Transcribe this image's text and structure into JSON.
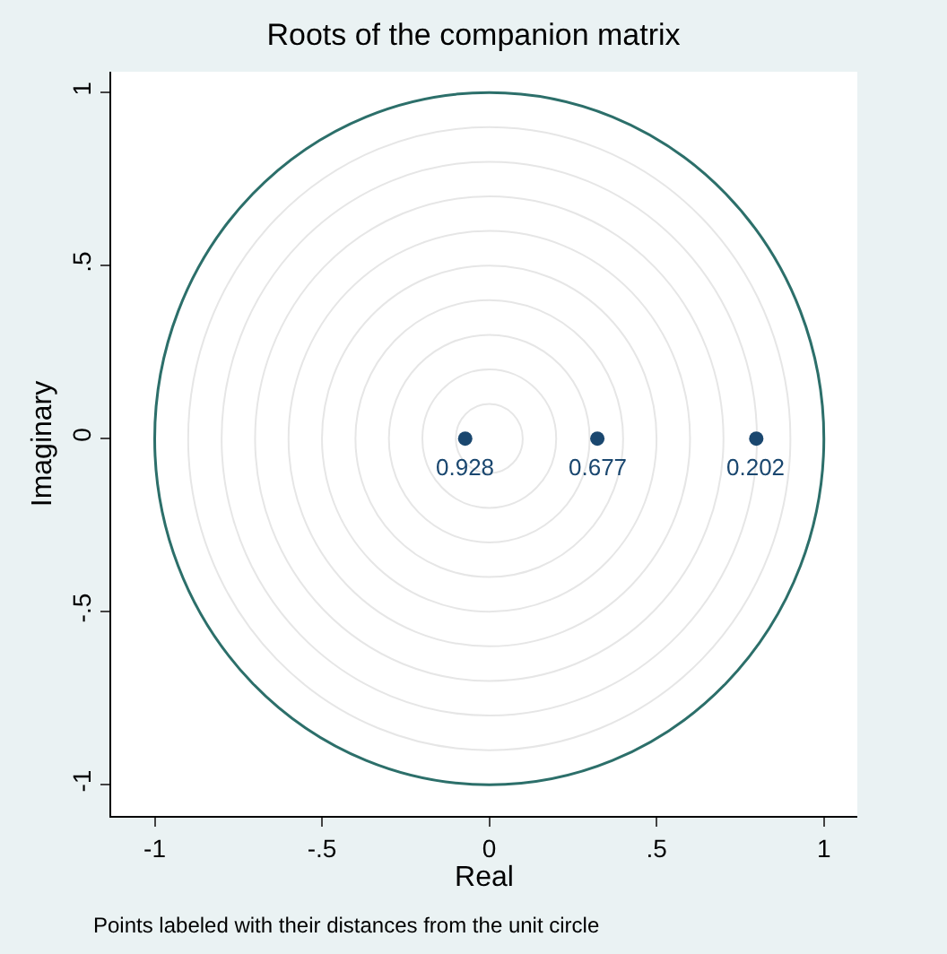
{
  "chart_data": {
    "type": "scatter",
    "title": "Roots of the companion matrix",
    "xlabel": "Real",
    "ylabel": "Imaginary",
    "xlim": [
      -1.13,
      1.1
    ],
    "ylim": [
      -1.09,
      1.06
    ],
    "xticks": [
      {
        "value": -1,
        "label": "-1"
      },
      {
        "value": -0.5,
        "label": "-.5"
      },
      0,
      {
        "value": 0.5,
        "label": ".5"
      },
      1
    ],
    "yticks": [
      {
        "value": -1,
        "label": "-1"
      },
      {
        "value": -0.5,
        "label": "-.5"
      },
      0,
      {
        "value": 0.5,
        "label": ".5"
      },
      1
    ],
    "marker": "circle",
    "series": [
      {
        "color": "#1a476f",
        "x": [
          -0.072,
          0.323,
          0.798
        ],
        "values": [
          0,
          0,
          0
        ]
      }
    ],
    "annotations": [
      {
        "text": "0.928",
        "x": -0.072,
        "y": 0
      },
      {
        "text": "0.677",
        "x": 0.323,
        "y": 0
      },
      {
        "text": "0.202",
        "x": 0.798,
        "y": 0
      },
      "Points labeled with their distances from the unit circle"
    ]
  }
}
